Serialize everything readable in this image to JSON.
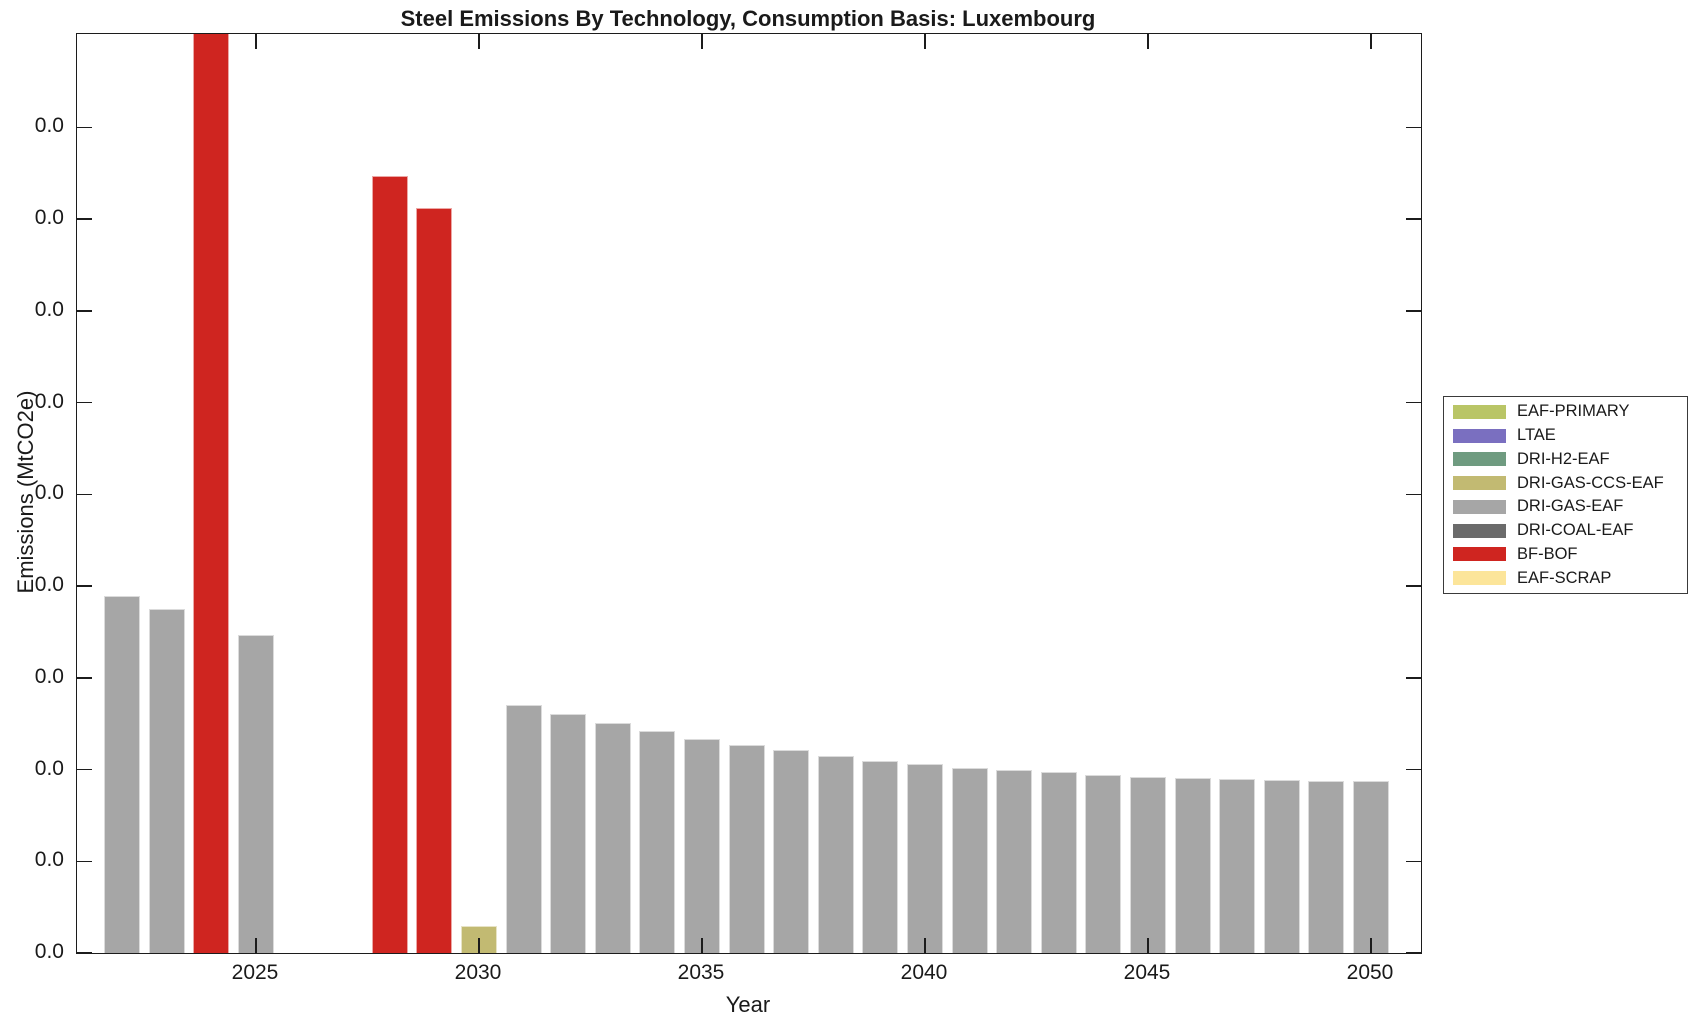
{
  "title": "Steel Emissions By Technology, Consumption Basis: Luxembourg",
  "axes": {
    "xlabel": "Year",
    "ylabel": "Emissions (MtCO2e)",
    "x_tick_labels": [
      "2025",
      "2030",
      "2035",
      "2040",
      "2045",
      "2050"
    ],
    "x_tick_years": [
      2025,
      2030,
      2035,
      2040,
      2045,
      2050
    ],
    "y_tick_labels": [
      "0.0",
      "0.0",
      "0.0",
      "0.0",
      "0.0",
      "0.0",
      "0.0",
      "0.0",
      "0.0",
      "0.0"
    ],
    "y_tick_count": 10
  },
  "legend": {
    "position": "right-outside",
    "entries": [
      {
        "label": "EAF-PRIMARY",
        "color": "#b9c566"
      },
      {
        "label": "LTAE",
        "color": "#7a6fc0"
      },
      {
        "label": "DRI-H2-EAF",
        "color": "#6f9b80"
      },
      {
        "label": "DRI-GAS-CCS-EAF",
        "color": "#c2ba72"
      },
      {
        "label": "DRI-GAS-EAF",
        "color": "#a6a6a6"
      },
      {
        "label": "DRI-COAL-EAF",
        "color": "#6b6b6b"
      },
      {
        "label": "BF-BOF",
        "color": "#cf2520"
      },
      {
        "label": "EAF-SCRAP",
        "color": "#fce59a"
      }
    ]
  },
  "chart_data": {
    "type": "bar",
    "title": "Steel Emissions By Technology, Consumption Basis: Luxembourg",
    "xlabel": "Year",
    "ylabel": "Emissions (MtCO2e)",
    "x_range_years": [
      2022,
      2050
    ],
    "grid": false,
    "y_axis_note": "All 10 y-axis tick labels render as '0.0' (values are smaller than the 0.1 display precision). Bar heights below are given in y-axis tick units, where 1 unit = the spacing between adjacent y ticks. The plot box spans about 10.0 tick units; the 2024 BF-BOF bar is clipped at the top of the axes.",
    "bars": [
      {
        "year": 2022,
        "technology": "DRI-GAS-EAF",
        "height_units": 3.89
      },
      {
        "year": 2023,
        "technology": "DRI-GAS-EAF",
        "height_units": 3.75
      },
      {
        "year": 2024,
        "technology": "BF-BOF",
        "height_units": 11.0,
        "clipped_at_top": true
      },
      {
        "year": 2025,
        "technology": "DRI-GAS-EAF",
        "height_units": 3.47
      },
      {
        "year": 2026,
        "technology": null,
        "height_units": 0
      },
      {
        "year": 2027,
        "technology": null,
        "height_units": 0
      },
      {
        "year": 2028,
        "technology": "BF-BOF",
        "height_units": 8.47
      },
      {
        "year": 2029,
        "technology": "BF-BOF",
        "height_units": 8.12
      },
      {
        "year": 2030,
        "technology": "DRI-GAS-CCS-EAF",
        "height_units": 0.29
      },
      {
        "year": 2031,
        "technology": "DRI-GAS-EAF",
        "height_units": 2.7
      },
      {
        "year": 2032,
        "technology": "DRI-GAS-EAF",
        "height_units": 2.6
      },
      {
        "year": 2033,
        "technology": "DRI-GAS-EAF",
        "height_units": 2.51
      },
      {
        "year": 2034,
        "technology": "DRI-GAS-EAF",
        "height_units": 2.42
      },
      {
        "year": 2035,
        "technology": "DRI-GAS-EAF",
        "height_units": 2.33
      },
      {
        "year": 2036,
        "technology": "DRI-GAS-EAF",
        "height_units": 2.27
      },
      {
        "year": 2037,
        "technology": "DRI-GAS-EAF",
        "height_units": 2.21
      },
      {
        "year": 2038,
        "technology": "DRI-GAS-EAF",
        "height_units": 2.15
      },
      {
        "year": 2039,
        "technology": "DRI-GAS-EAF",
        "height_units": 2.09
      },
      {
        "year": 2040,
        "technology": "DRI-GAS-EAF",
        "height_units": 2.06
      },
      {
        "year": 2041,
        "technology": "DRI-GAS-EAF",
        "height_units": 2.02
      },
      {
        "year": 2042,
        "technology": "DRI-GAS-EAF",
        "height_units": 1.99
      },
      {
        "year": 2043,
        "technology": "DRI-GAS-EAF",
        "height_units": 1.97
      },
      {
        "year": 2044,
        "technology": "DRI-GAS-EAF",
        "height_units": 1.94
      },
      {
        "year": 2045,
        "technology": "DRI-GAS-EAF",
        "height_units": 1.92
      },
      {
        "year": 2046,
        "technology": "DRI-GAS-EAF",
        "height_units": 1.91
      },
      {
        "year": 2047,
        "technology": "DRI-GAS-EAF",
        "height_units": 1.9
      },
      {
        "year": 2048,
        "technology": "DRI-GAS-EAF",
        "height_units": 1.89
      },
      {
        "year": 2049,
        "technology": "DRI-GAS-EAF",
        "height_units": 1.87
      },
      {
        "year": 2050,
        "technology": "DRI-GAS-EAF",
        "height_units": 1.87
      }
    ]
  },
  "colors": {
    "axis": "#1c1c1c",
    "background": "#ffffff",
    "bar_edge": "rgba(255,255,255,0.6)"
  }
}
